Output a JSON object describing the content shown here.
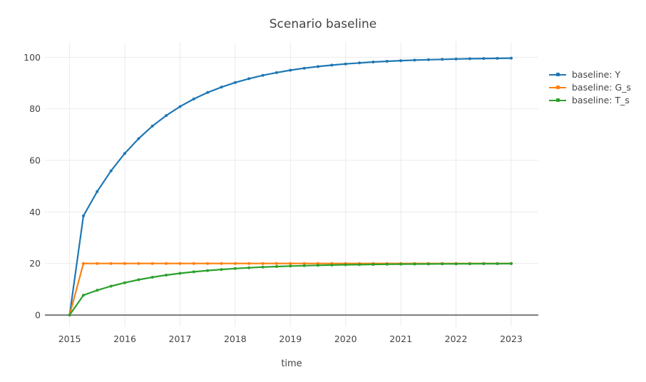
{
  "figure": {
    "background": "#ffffff",
    "text_color": "#444444",
    "grid_color": "#ebebeb",
    "zeroline_color": "#444444"
  },
  "chart_data": {
    "type": "line",
    "mode": "lines+markers",
    "title": "Scenario baseline",
    "xlabel": "time",
    "ylabel": "",
    "grid": true,
    "legend_position": "right",
    "xticks": [
      2015,
      2016,
      2017,
      2018,
      2019,
      2020,
      2021,
      2022,
      2023
    ],
    "yticks": [
      0,
      20,
      40,
      60,
      80,
      100
    ],
    "xlim": [
      2014.553,
      2023.491
    ],
    "ylim": [
      -4.42,
      105.91
    ],
    "x": [
      2015.0,
      2015.25,
      2015.5,
      2015.75,
      2016.0,
      2016.25,
      2016.5,
      2016.75,
      2017.0,
      2017.25,
      2017.5,
      2017.75,
      2018.0,
      2018.25,
      2018.5,
      2018.75,
      2019.0,
      2019.25,
      2019.5,
      2019.75,
      2020.0,
      2020.25,
      2020.5,
      2020.75,
      2021.0,
      2021.25,
      2021.5,
      2021.75,
      2022.0,
      2022.25,
      2022.5,
      2022.75,
      2023.0
    ],
    "series": [
      {
        "name": "baseline: Y",
        "color": "#1f77b4",
        "values": [
          0,
          38.46,
          47.93,
          55.94,
          62.72,
          68.45,
          73.31,
          77.41,
          80.89,
          83.83,
          86.32,
          88.42,
          90.2,
          91.71,
          92.99,
          94.06,
          94.98,
          95.75,
          96.4,
          96.96,
          97.43,
          97.82,
          98.16,
          98.44,
          98.68,
          98.88,
          99.06,
          99.2,
          99.32,
          99.43,
          99.52,
          99.59,
          99.65
        ]
      },
      {
        "name": "baseline: G_s",
        "color": "#ff7f0e",
        "values": [
          0,
          20,
          20,
          20,
          20,
          20,
          20,
          20,
          20,
          20,
          20,
          20,
          20,
          20,
          20,
          20,
          20,
          20,
          20,
          20,
          20,
          20,
          20,
          20,
          20,
          20,
          20,
          20,
          20,
          20,
          20,
          20,
          20
        ]
      },
      {
        "name": "baseline: T_s",
        "color": "#2ca02c",
        "values": [
          0,
          7.69,
          9.59,
          11.19,
          12.54,
          13.69,
          14.66,
          15.48,
          16.18,
          16.77,
          17.26,
          17.68,
          18.04,
          18.34,
          18.6,
          18.81,
          19.0,
          19.15,
          19.28,
          19.39,
          19.49,
          19.56,
          19.63,
          19.69,
          19.74,
          19.78,
          19.81,
          19.84,
          19.86,
          19.89,
          19.9,
          19.92,
          19.93
        ]
      }
    ]
  }
}
